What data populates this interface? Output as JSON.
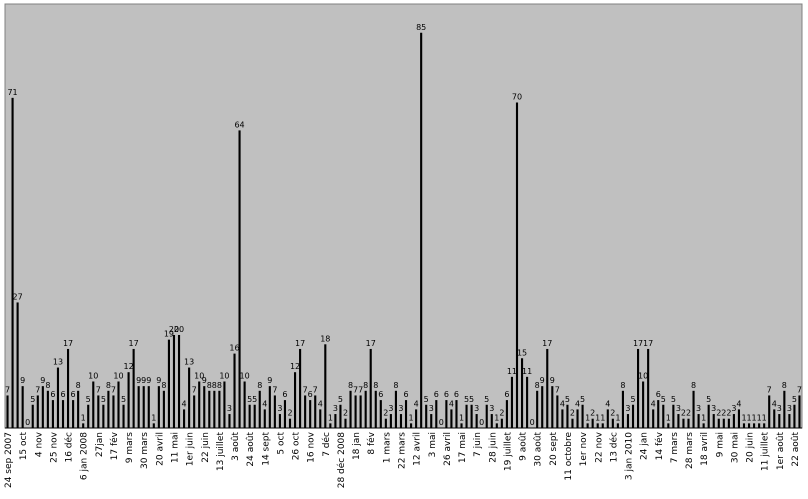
{
  "chart_data": {
    "type": "bar",
    "values": [
      7,
      71,
      27,
      9,
      0,
      5,
      7,
      9,
      8,
      6,
      13,
      6,
      17,
      6,
      8,
      1,
      5,
      10,
      7,
      5,
      8,
      7,
      10,
      5,
      12,
      17,
      9,
      9,
      9,
      1,
      9,
      8,
      19,
      20,
      20,
      4,
      13,
      7,
      10,
      9,
      8,
      8,
      8,
      10,
      3,
      16,
      64,
      10,
      5,
      5,
      8,
      4,
      9,
      7,
      3,
      6,
      2,
      12,
      17,
      7,
      6,
      7,
      4,
      18,
      1,
      3,
      5,
      2,
      8,
      7,
      7,
      8,
      17,
      8,
      6,
      2,
      3,
      8,
      3,
      6,
      1,
      4,
      85,
      5,
      3,
      6,
      0,
      6,
      4,
      6,
      1,
      5,
      5,
      3,
      0,
      5,
      3,
      1,
      2,
      6,
      11,
      70,
      15,
      11,
      0,
      8,
      9,
      17,
      9,
      7,
      4,
      5,
      2,
      4,
      5,
      1,
      2,
      1,
      1,
      4,
      2,
      1,
      8,
      3,
      5,
      17,
      10,
      17,
      4,
      6,
      5,
      1,
      5,
      3,
      2,
      2,
      8,
      3,
      1,
      5,
      3,
      2,
      2,
      2,
      3,
      4,
      1,
      1,
      1,
      1,
      1,
      7,
      4,
      3,
      8,
      3,
      5,
      7
    ],
    "x_tick_labels": [
      "24 sep 2007",
      "15 oct",
      "4 nov",
      "25 nov",
      "16 déc",
      "6 jan 2008",
      "27jan",
      "17 fév",
      "9 mars",
      "30 mars",
      "20 avril",
      "11 mai",
      "1er juin",
      "22 juin",
      "13 juillet",
      "3 août",
      "24 août",
      "14 sept",
      "5 oct",
      "26 oct",
      "16 nov",
      "7 déc",
      "28 déc 2008",
      "18 jan",
      "8 fév",
      "1 mars",
      "22 mars",
      "12 avril",
      "3 mai",
      "26 avril",
      "17 mai",
      "7 juin",
      "28 juin",
      "19 juillet",
      "9 août",
      "30 août",
      "20 sept",
      "11 octobre",
      "1er nov",
      "22 nov",
      "13 déc",
      "3 jan 2010",
      "24 jan",
      "14 fév",
      "7 mars",
      "28 mars",
      "18 avril",
      "9 mai",
      "30 mai",
      "20 juin",
      "11 juillet",
      "1er août",
      "22 août"
    ],
    "ylim": [
      0,
      90
    ],
    "grid": false,
    "colors": {
      "plot_background": "#c0c0c0",
      "bar": "#000000",
      "page": "#ffffff"
    },
    "title": "",
    "xlabel": "",
    "ylabel": ""
  }
}
